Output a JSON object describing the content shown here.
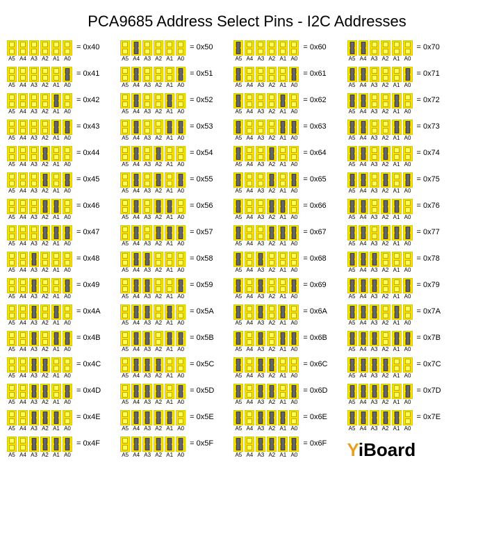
{
  "title": "PCA9685 Address Select Pins - I2C Addresses",
  "pin_labels": [
    "A5",
    "A4",
    "A3",
    "A2",
    "A1",
    "A0"
  ],
  "colors": {
    "pad_bg": "#fee100",
    "pad_border": "#cccc00",
    "pad_inner": "#ffff55",
    "pad_inner_border": "#bba800",
    "jumper": "#666666",
    "jumper_border": "#444444",
    "background": "#ffffff",
    "text": "#000000",
    "logo_accent": "#e8a020"
  },
  "fonts": {
    "title_size": 22,
    "addr_size": 11,
    "pin_label_size": 8,
    "logo_size": 26
  },
  "layout": {
    "columns": 4,
    "rows": 16,
    "column_gap": 28,
    "row_gap": 6,
    "pad_width": 14,
    "pad_height": 22,
    "pad_gap": 2
  },
  "logo": "YiBoard",
  "base_address": 64,
  "addr_prefix": "= 0x",
  "omit_last_cell": true
}
